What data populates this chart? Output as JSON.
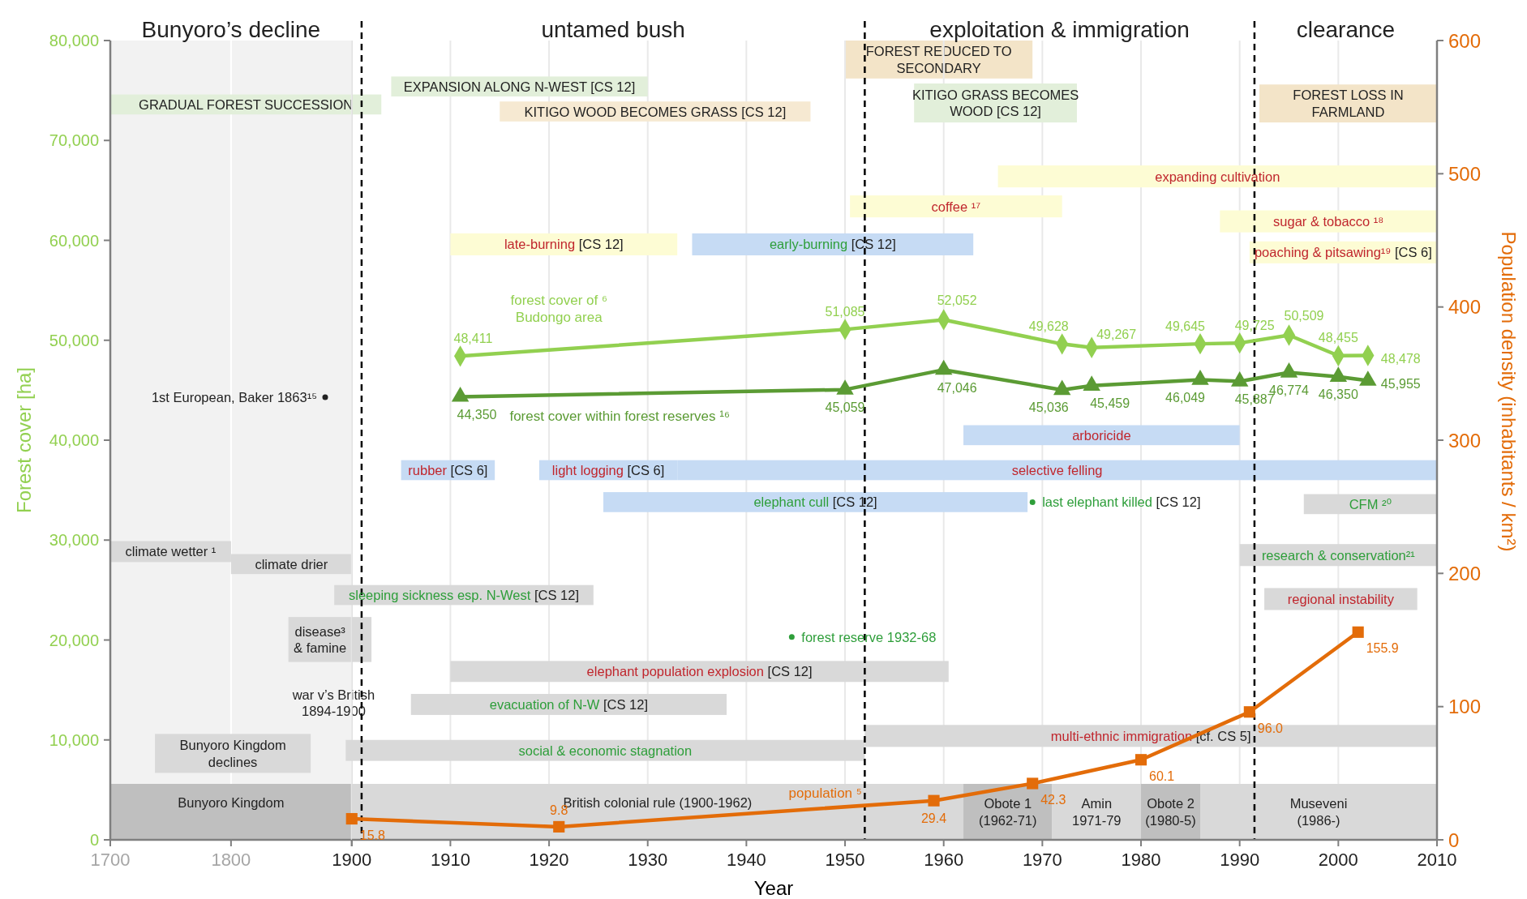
{
  "chart_data": [
    {
      "type": "line",
      "ylabel": "Forest cover [ha]",
      "xlim": [
        1700,
        1900
      ],
      "xticks": [
        1700,
        1800,
        {
          "value": 1900,
          "label": null
        }
      ],
      "ylim": [
        0,
        80000
      ],
      "yticks": [
        0,
        {
          "value": 10000,
          "label": "10,000"
        },
        {
          "value": 20000,
          "label": "20,000"
        },
        {
          "value": 30000,
          "label": "30,000"
        },
        {
          "value": 40000,
          "label": "40,000"
        },
        {
          "value": 50000,
          "label": "50,000"
        },
        {
          "value": 60000,
          "label": "60,000"
        },
        {
          "value": 70000,
          "label": "70,000"
        },
        {
          "value": 80000,
          "label": "80,000"
        }
      ],
      "grid": "x",
      "bands": [
        {
          "axis": "x",
          "from": 1700,
          "to": 1900,
          "color": "#f2f2f2"
        },
        {
          "axis": "x",
          "from": 1847.5,
          "to": 1900,
          "label": "disease³\n& famine",
          "color": "#d9d9d9"
        },
        {
          "axis": "x",
          "from": 1737,
          "to": 1866,
          "label": "Bunyoro Kingdom\ndeclines",
          "color": "#d9d9d9"
        },
        {
          "axis": "x",
          "from": 1700,
          "to": 1900,
          "label": "Bunyoro Kingdom",
          "color": "#bfbfbf"
        }
      ],
      "annotations": [
        "Bunyoro’s decline",
        "1st European, Baker 1863¹⁵",
        "war v’s British\n1894-1900",
        "GRADUAL FOREST SUCCESSION",
        "climate wetter ¹",
        "climate drier"
      ]
    },
    {
      "type": "line",
      "xlabel": "Year",
      "y2label": "Population density (inhabitants / km²)",
      "xlim": [
        1900,
        2010
      ],
      "xticks": [
        1900,
        1910,
        1920,
        1930,
        1940,
        1950,
        1960,
        1970,
        1980,
        1990,
        2000,
        2010
      ],
      "ylim": [
        0,
        80000
      ],
      "y2lim": [
        0,
        600
      ],
      "y2ticks": [
        0,
        100,
        200,
        300,
        400,
        500,
        600
      ],
      "grid": "x",
      "series": [
        {
          "name": "forest cover of ⁶\nBudongo area",
          "type": "line",
          "color": "#92d050",
          "marker": "diamond",
          "x": [
            1911,
            1950,
            1960,
            1972,
            1975,
            1986,
            1990,
            1995,
            2000,
            2003
          ],
          "values": [
            48411,
            51085,
            52052,
            49628,
            49267,
            49645,
            49725,
            50509,
            48455,
            48478
          ],
          "value_labels": [
            "48,411",
            "51,085",
            "52,052",
            "49,628",
            "49,267",
            "49,645",
            "49,725",
            "50,509",
            "48,455",
            "48,478"
          ]
        },
        {
          "name": "forest cover within forest reserves ¹⁶",
          "type": "line",
          "color": "#5b9b34",
          "marker": "triangle",
          "x": [
            1911,
            1950,
            1960,
            1972,
            1975,
            1986,
            1990,
            1995,
            2000,
            2003
          ],
          "values": [
            44350,
            45059,
            47046,
            45036,
            45459,
            46049,
            45887,
            46774,
            46350,
            45955
          ],
          "value_labels": [
            "44,350",
            "45,059",
            "47,046",
            "45,036",
            "45,459",
            "46,049",
            "45,887",
            "46,774",
            "46,350",
            "45,955"
          ]
        },
        {
          "name": "population ⁵",
          "type": "line",
          "color": "#e36c09",
          "marker": "square",
          "axis": "y2",
          "x": [
            1900,
            1921,
            1959,
            1969,
            1980,
            1991,
            2002
          ],
          "values": [
            15.8,
            9.8,
            29.4,
            42.3,
            60.1,
            96.0,
            155.9
          ],
          "value_labels": [
            "15.8",
            "9.8",
            "29.4",
            "42.3",
            "60.1",
            "96.0",
            "155.9"
          ]
        }
      ],
      "ref_lines": [
        {
          "axis": "x",
          "value": 1901,
          "color": "#000000",
          "line_style": "dashed"
        },
        {
          "axis": "x",
          "value": 1952,
          "color": "#000000",
          "line_style": "dashed"
        },
        {
          "axis": "x",
          "value": 1991.5,
          "color": "#000000",
          "line_style": "dashed"
        }
      ],
      "bands": [
        {
          "axis": "x",
          "from": 1950,
          "to": 1969,
          "label": "FOREST REDUCED TO\nSECONDARY",
          "color": "#f3e4c8"
        },
        {
          "axis": "x",
          "from": 1957,
          "to": 1973.5,
          "label": "KITIGO GRASS BECOMES\nWOOD [CS 12]",
          "color": "#e2efda"
        },
        {
          "axis": "x",
          "from": 1992,
          "to": 2010,
          "label": "FOREST LOSS IN\nFARMLAND",
          "color": "#f3e4c8"
        },
        {
          "axis": "x",
          "from": 1900,
          "to": 1902,
          "color": "#d9d9d9"
        },
        {
          "axis": "x",
          "from": 1900,
          "to": 1962,
          "label": "British colonial rule (1900-1962)",
          "color": "#d9d9d9"
        },
        {
          "axis": "x",
          "from": 1962,
          "to": 1971,
          "label": "Obote 1\n(1962-71)",
          "color": "#bfbfbf"
        },
        {
          "axis": "x",
          "from": 1971,
          "to": 1980,
          "label": "Amin\n1971-79",
          "color": "#d9d9d9"
        },
        {
          "axis": "x",
          "from": 1980,
          "to": 1986,
          "label": "Obote 2\n(1980-5)",
          "color": "#bfbfbf"
        },
        {
          "axis": "x",
          "from": 1986,
          "to": 2010,
          "label": "Museveni\n(1986-)",
          "color": "#d9d9d9"
        }
      ],
      "annotations": [
        "untamed bush",
        "exploitation & immigration",
        "clearance",
        "forest reserve 1932-68",
        "last elephant killed [CS 12]",
        "EXPANSION  ALONG N-WEST [CS 12]",
        "KITIGO WOOD BECOMES GRASS [CS 12]",
        "expanding cultivation",
        "coffee ¹⁷",
        "sugar & tobacco ¹⁸",
        "poaching & pitsawing¹⁹ [CS 6]",
        "late-burning [CS 12]",
        "early-burning [CS 12]",
        "arboricide",
        "rubber [CS 6]",
        "light logging [CS 6]",
        "selective felling",
        "elephant cull [CS 12]",
        "CFM ²⁰",
        "research & conservation²¹",
        "sleeping sickness esp. N-West [CS 12]",
        "regional instability",
        "elephant population explosion [CS 12]",
        "evacuation of N-W [CS 12]",
        "social & economic stagnation",
        "multi-ethnic immigration [cf. CS 5]"
      ]
    }
  ]
}
